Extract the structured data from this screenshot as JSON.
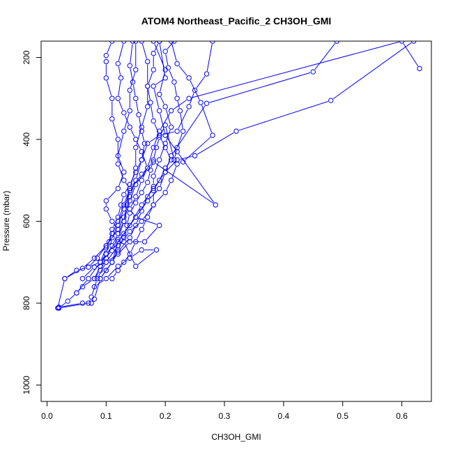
{
  "chart_data": {
    "type": "line",
    "title": "ATOM4 Northeast_Pacific_2 CH3OH_GMI",
    "xlabel": "CH3OH_GMI",
    "ylabel": "Pressure (mbar)",
    "xlim": [
      -0.01,
      0.65
    ],
    "ylim": [
      1040,
      160
    ],
    "y_reversed": true,
    "xticks": [
      0.0,
      0.1,
      0.2,
      0.3,
      0.4,
      0.5,
      0.6
    ],
    "xtick_labels": [
      "0.0",
      "0.1",
      "0.2",
      "0.3",
      "0.4",
      "0.5",
      "0.6"
    ],
    "yticks": [
      200,
      400,
      600,
      800,
      1000
    ],
    "ytick_labels": [
      "200",
      "400",
      "600",
      "800",
      "1000"
    ],
    "grid": false,
    "legend": "none",
    "color": "#0000ff",
    "marker": "open-circle",
    "series": [
      {
        "values": [
          [
            0.02,
            812
          ],
          [
            0.035,
            795
          ],
          [
            0.05,
            775
          ],
          [
            0.07,
            740
          ],
          [
            0.09,
            700
          ],
          [
            0.1,
            665
          ],
          [
            0.11,
            630
          ],
          [
            0.12,
            600
          ],
          [
            0.13,
            560
          ],
          [
            0.14,
            520
          ],
          [
            0.15,
            470
          ],
          [
            0.15,
            420
          ],
          [
            0.16,
            370
          ],
          [
            0.17,
            320
          ],
          [
            0.17,
            270
          ],
          [
            0.18,
            230
          ],
          [
            0.18,
            190
          ],
          [
            0.19,
            160
          ]
        ]
      },
      {
        "values": [
          [
            0.018,
            812
          ],
          [
            0.03,
            740
          ],
          [
            0.06,
            715
          ],
          [
            0.08,
            690
          ],
          [
            0.1,
            660
          ],
          [
            0.12,
            620
          ],
          [
            0.13,
            590
          ],
          [
            0.14,
            540
          ],
          [
            0.15,
            500
          ],
          [
            0.16,
            450
          ],
          [
            0.17,
            410
          ],
          [
            0.19,
            390
          ],
          [
            0.22,
            380
          ],
          [
            0.24,
            320
          ],
          [
            0.25,
            280
          ],
          [
            0.27,
            240
          ],
          [
            0.28,
            160
          ]
        ]
      },
      {
        "values": [
          [
            0.02,
            810
          ],
          [
            0.06,
            800
          ],
          [
            0.075,
            800
          ],
          [
            0.08,
            790
          ],
          [
            0.09,
            740
          ],
          [
            0.11,
            700
          ],
          [
            0.12,
            650
          ],
          [
            0.14,
            610
          ],
          [
            0.16,
            560
          ],
          [
            0.18,
            520
          ],
          [
            0.2,
            480
          ],
          [
            0.22,
            450
          ],
          [
            0.25,
            440
          ],
          [
            0.32,
            380
          ],
          [
            0.48,
            305
          ],
          [
            0.62,
            160
          ]
        ]
      },
      {
        "values": [
          [
            0.02,
            812
          ],
          [
            0.07,
            800
          ],
          [
            0.075,
            785
          ],
          [
            0.085,
            740
          ],
          [
            0.1,
            700
          ],
          [
            0.12,
            660
          ],
          [
            0.14,
            625
          ],
          [
            0.16,
            600
          ],
          [
            0.18,
            560
          ],
          [
            0.2,
            530
          ],
          [
            0.21,
            500
          ],
          [
            0.22,
            460
          ],
          [
            0.23,
            455
          ],
          [
            0.28,
            390
          ],
          [
            0.26,
            310
          ],
          [
            0.24,
            250
          ],
          [
            0.22,
            215
          ],
          [
            0.21,
            160
          ]
        ]
      },
      {
        "values": [
          [
            0.03,
            740
          ],
          [
            0.05,
            720
          ],
          [
            0.07,
            712
          ],
          [
            0.09,
            700
          ],
          [
            0.11,
            672
          ],
          [
            0.13,
            630
          ],
          [
            0.15,
            590
          ],
          [
            0.17,
            550
          ],
          [
            0.19,
            520
          ],
          [
            0.2,
            480
          ],
          [
            0.21,
            440
          ],
          [
            0.27,
            312
          ],
          [
            0.45,
            235
          ],
          [
            0.49,
            160
          ]
        ]
      },
      {
        "values": [
          [
            0.05,
            775
          ],
          [
            0.06,
            760
          ],
          [
            0.08,
            740
          ],
          [
            0.09,
            710
          ],
          [
            0.1,
            680
          ],
          [
            0.12,
            645
          ],
          [
            0.13,
            600
          ],
          [
            0.14,
            550
          ],
          [
            0.15,
            510
          ],
          [
            0.17,
            470
          ],
          [
            0.18,
            420
          ],
          [
            0.19,
            380
          ],
          [
            0.21,
            330
          ],
          [
            0.24,
            300
          ],
          [
            0.6,
            160
          ],
          [
            0.63,
            227
          ]
        ]
      },
      {
        "values": [
          [
            0.07,
            712
          ],
          [
            0.085,
            690
          ],
          [
            0.1,
            660
          ],
          [
            0.11,
            640
          ],
          [
            0.12,
            610
          ],
          [
            0.13,
            570
          ],
          [
            0.14,
            525
          ],
          [
            0.16,
            485
          ],
          [
            0.18,
            455
          ],
          [
            0.285,
            560
          ],
          [
            0.22,
            430
          ],
          [
            0.2,
            390
          ],
          [
            0.19,
            330
          ],
          [
            0.18,
            270
          ],
          [
            0.2,
            250
          ],
          [
            0.19,
            160
          ]
        ]
      },
      {
        "values": [
          [
            0.09,
            740
          ],
          [
            0.1,
            720
          ],
          [
            0.11,
            700
          ],
          [
            0.12,
            675
          ],
          [
            0.14,
            640
          ],
          [
            0.15,
            610
          ],
          [
            0.16,
            575
          ],
          [
            0.17,
            540
          ],
          [
            0.18,
            515
          ],
          [
            0.18,
            490
          ],
          [
            0.19,
            450
          ],
          [
            0.2,
            410
          ],
          [
            0.21,
            370
          ],
          [
            0.2,
            320
          ],
          [
            0.19,
            290
          ],
          [
            0.2,
            230
          ],
          [
            0.18,
            160
          ]
        ]
      },
      {
        "values": [
          [
            0.08,
            760
          ],
          [
            0.1,
            740
          ],
          [
            0.12,
            710
          ],
          [
            0.14,
            690
          ],
          [
            0.16,
            670
          ],
          [
            0.185,
            670
          ],
          [
            0.15,
            710
          ],
          [
            0.13,
            650
          ],
          [
            0.12,
            620
          ],
          [
            0.11,
            600
          ],
          [
            0.1,
            570
          ],
          [
            0.1,
            550
          ],
          [
            0.12,
            520
          ],
          [
            0.13,
            480
          ],
          [
            0.12,
            440
          ],
          [
            0.13,
            380
          ],
          [
            0.14,
            330
          ],
          [
            0.14,
            280
          ],
          [
            0.15,
            230
          ],
          [
            0.15,
            160
          ]
        ]
      },
      {
        "values": [
          [
            0.08,
            740
          ],
          [
            0.09,
            720
          ],
          [
            0.1,
            690
          ],
          [
            0.11,
            660
          ],
          [
            0.12,
            630
          ],
          [
            0.13,
            600
          ],
          [
            0.135,
            560
          ],
          [
            0.14,
            520
          ],
          [
            0.13,
            500
          ],
          [
            0.12,
            460
          ],
          [
            0.12,
            400
          ],
          [
            0.11,
            350
          ],
          [
            0.11,
            300
          ],
          [
            0.1,
            250
          ],
          [
            0.1,
            210
          ],
          [
            0.1,
            195
          ],
          [
            0.11,
            160
          ]
        ]
      },
      {
        "values": [
          [
            0.06,
            740
          ],
          [
            0.08,
            712
          ],
          [
            0.1,
            700
          ],
          [
            0.12,
            680
          ],
          [
            0.14,
            650
          ],
          [
            0.165,
            650
          ],
          [
            0.19,
            610
          ],
          [
            0.15,
            590
          ],
          [
            0.14,
            570
          ],
          [
            0.15,
            540
          ],
          [
            0.16,
            500
          ],
          [
            0.17,
            470
          ],
          [
            0.16,
            430
          ],
          [
            0.15,
            400
          ],
          [
            0.14,
            370
          ],
          [
            0.13,
            335
          ],
          [
            0.12,
            300
          ],
          [
            0.125,
            250
          ],
          [
            0.12,
            215
          ],
          [
            0.13,
            160
          ]
        ]
      },
      {
        "values": [
          [
            0.11,
            740
          ],
          [
            0.12,
            720
          ],
          [
            0.13,
            700
          ],
          [
            0.14,
            680
          ],
          [
            0.15,
            650
          ],
          [
            0.16,
            620
          ],
          [
            0.17,
            590
          ],
          [
            0.18,
            560
          ],
          [
            0.18,
            525
          ],
          [
            0.19,
            500
          ],
          [
            0.2,
            470
          ],
          [
            0.21,
            450
          ],
          [
            0.2,
            420
          ],
          [
            0.19,
            390
          ],
          [
            0.18,
            355
          ],
          [
            0.175,
            310
          ],
          [
            0.17,
            270
          ],
          [
            0.17,
            210
          ],
          [
            0.16,
            160
          ]
        ]
      },
      {
        "values": [
          [
            0.09,
            700
          ],
          [
            0.1,
            680
          ],
          [
            0.105,
            650
          ],
          [
            0.11,
            620
          ],
          [
            0.12,
            590
          ],
          [
            0.125,
            560
          ],
          [
            0.13,
            535
          ],
          [
            0.14,
            510
          ],
          [
            0.15,
            480
          ],
          [
            0.16,
            450
          ],
          [
            0.165,
            410
          ],
          [
            0.16,
            380
          ],
          [
            0.155,
            340
          ],
          [
            0.15,
            300
          ],
          [
            0.145,
            260
          ],
          [
            0.14,
            220
          ],
          [
            0.145,
            160
          ]
        ]
      },
      {
        "values": [
          [
            0.1,
            720
          ],
          [
            0.11,
            700
          ],
          [
            0.12,
            670
          ],
          [
            0.13,
            640
          ],
          [
            0.135,
            610
          ],
          [
            0.14,
            580
          ],
          [
            0.15,
            555
          ],
          [
            0.16,
            530
          ],
          [
            0.17,
            505
          ],
          [
            0.175,
            475
          ],
          [
            0.18,
            450
          ],
          [
            0.185,
            420
          ],
          [
            0.19,
            395
          ],
          [
            0.2,
            365
          ],
          [
            0.215,
            450
          ],
          [
            0.22,
            420
          ],
          [
            0.23,
            380
          ],
          [
            0.225,
            330
          ],
          [
            0.22,
            300
          ],
          [
            0.215,
            260
          ],
          [
            0.205,
            225
          ],
          [
            0.2,
            185
          ],
          [
            0.215,
            160
          ]
        ]
      }
    ]
  }
}
